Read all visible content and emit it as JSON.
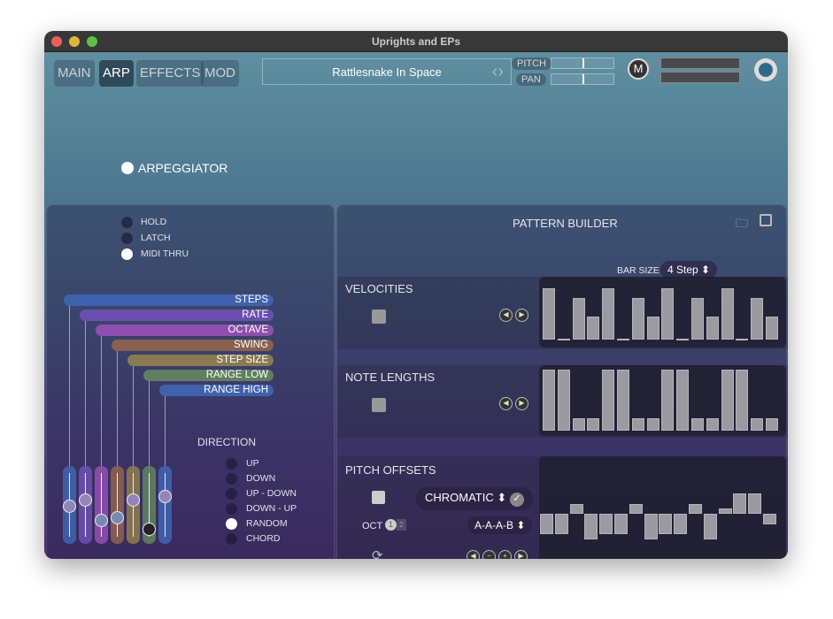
{
  "window": {
    "title": "Uprights and EPs"
  },
  "tabs": [
    {
      "label": "MAIN"
    },
    {
      "label": "ARP"
    },
    {
      "label": "EFFECTS"
    },
    {
      "label": "MOD"
    }
  ],
  "active_tab": "ARP",
  "preset": {
    "name": "Rattlesnake In Space"
  },
  "controls": {
    "pitch_label": "PITCH",
    "pan_label": "PAN",
    "m_label": "M"
  },
  "arp": {
    "toggle_label": "ARPEGGIATOR",
    "enabled": true,
    "options": [
      {
        "label": "HOLD",
        "on": false
      },
      {
        "label": "LATCH",
        "on": false
      },
      {
        "label": "MIDI THRU",
        "on": true
      }
    ],
    "params": [
      {
        "label": "STEPS",
        "color": "#3f62ad",
        "value": 0.48
      },
      {
        "label": "RATE",
        "color": "#6a4fae",
        "value": 0.59
      },
      {
        "label": "OCTAVE",
        "color": "#8e4fae",
        "value": 0.27
      },
      {
        "label": "SWING",
        "color": "#8a6050",
        "value": 0.31
      },
      {
        "label": "STEP SIZE",
        "color": "#8a7a50",
        "value": 0.59
      },
      {
        "label": "RANGE LOW",
        "color": "#5f8060",
        "value": 0.13
      },
      {
        "label": "RANGE HIGH",
        "color": "#3f62ad",
        "value": 0.64
      }
    ],
    "direction_label": "DIRECTION",
    "directions": [
      {
        "label": "UP",
        "on": false
      },
      {
        "label": "DOWN",
        "on": false
      },
      {
        "label": "UP - DOWN",
        "on": false
      },
      {
        "label": "DOWN - UP",
        "on": false
      },
      {
        "label": "RANDOM",
        "on": true
      },
      {
        "label": "CHORD",
        "on": false
      }
    ]
  },
  "pattern": {
    "title": "PATTERN BUILDER",
    "bar_size_label": "BAR SIZE",
    "bar_size": "4 Step",
    "velocities": {
      "label": "VELOCITIES",
      "values": [
        1,
        0,
        0.81,
        0.45,
        1,
        0,
        0.81,
        0.45,
        1,
        0,
        0.81,
        0.45,
        1,
        0,
        0.81,
        0.45
      ]
    },
    "note_lengths": {
      "label": "NOTE LENGTHS",
      "values": [
        1,
        1,
        0.2,
        0.2,
        1,
        1,
        0.2,
        0.2,
        1,
        1,
        0.2,
        0.2,
        1,
        1,
        0.2,
        0.2
      ]
    },
    "pitch_offsets": {
      "label": "PITCH OFFSETS",
      "scale": "CHROMATIC",
      "oct_label": "OCT",
      "oct_options": [
        "1",
        "2"
      ],
      "oct_selected": "1",
      "pattern": "A-A-A-B",
      "values": [
        -4,
        -4,
        2,
        -5,
        -4,
        -4,
        2,
        -5,
        -4,
        -4,
        2,
        -5,
        1,
        4,
        4,
        -2
      ]
    }
  }
}
